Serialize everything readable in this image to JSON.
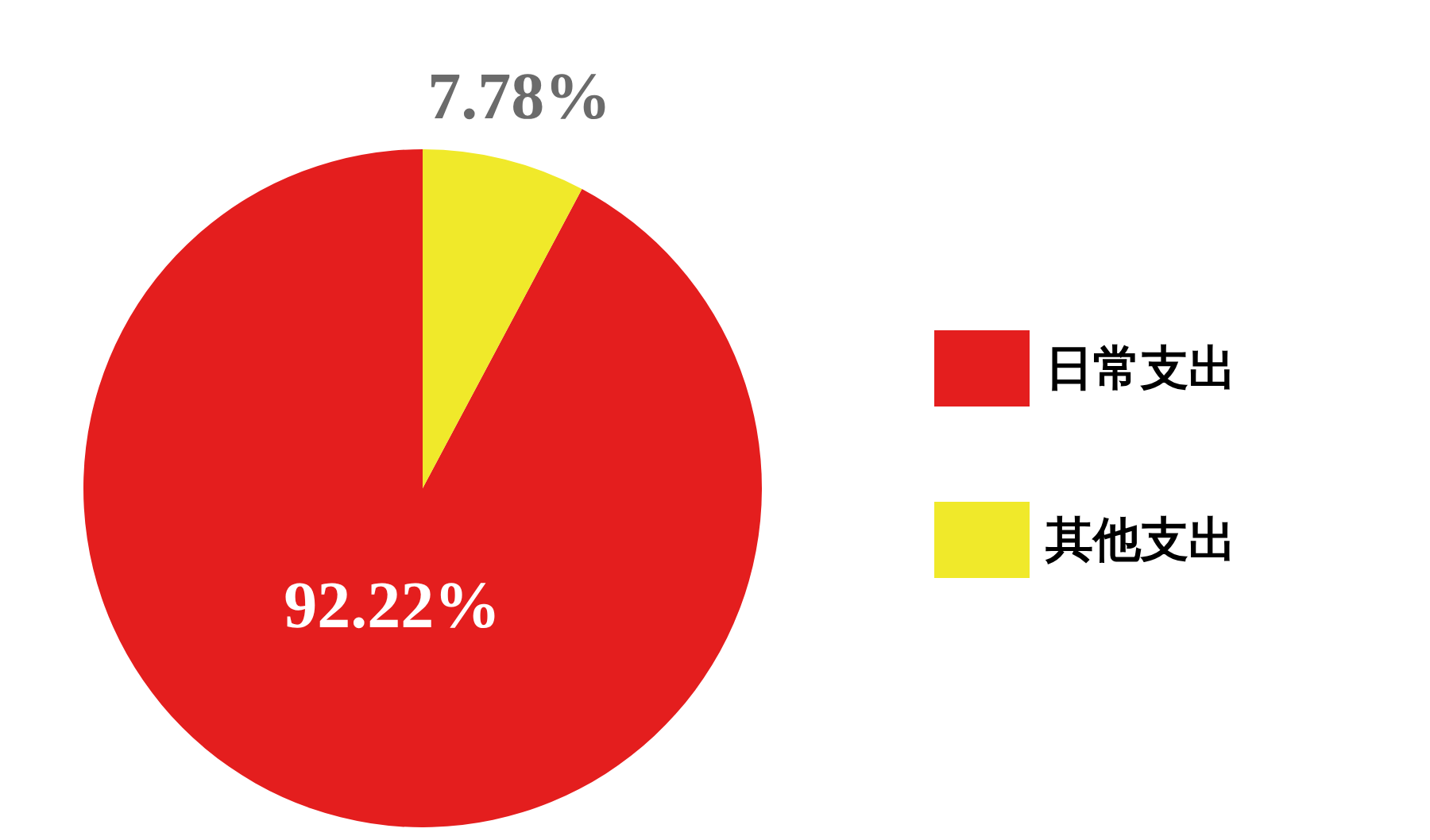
{
  "chart_data": {
    "type": "pie",
    "categories": [
      "日常支出",
      "其他支出"
    ],
    "values": [
      92.22,
      7.78
    ],
    "colors": [
      "#e41e1e",
      "#f0e92a"
    ],
    "value_labels": [
      "92.22%",
      "7.78%"
    ],
    "legend": "right"
  }
}
